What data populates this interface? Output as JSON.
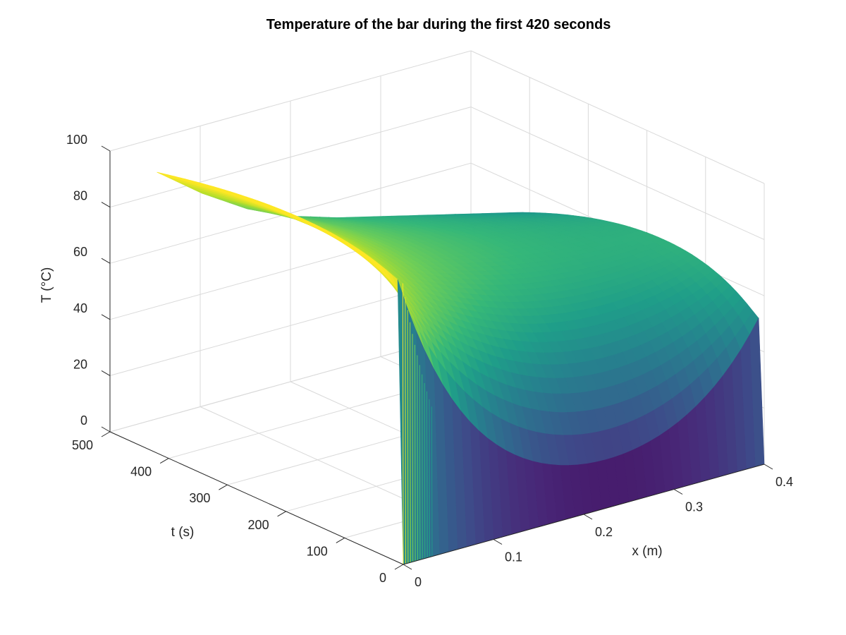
{
  "chart_data": {
    "type": "surface",
    "title": "Temperature of the bar during the first 420 seconds",
    "xlabel": "x (m)",
    "ylabel": "t (s)",
    "zlabel": "T (°C)",
    "x_ticks": [
      "0",
      "0.1",
      "0.2",
      "0.3",
      "0.4"
    ],
    "t_ticks": [
      "0",
      "100",
      "200",
      "300",
      "400",
      "500"
    ],
    "T_ticks": [
      "0",
      "20",
      "40",
      "60",
      "80",
      "100"
    ],
    "xlim": [
      0,
      0.4
    ],
    "tlim": [
      0,
      500
    ],
    "Tlim": [
      0,
      100
    ],
    "t_max_plotted": 420,
    "grid": true,
    "colormap": "viridis",
    "initial_temperature": 0,
    "boundary_temperature_x0": 100,
    "boundary_temperature_x04": 50,
    "profile_at_t420": {
      "x": [
        0,
        0.05,
        0.1,
        0.15,
        0.2,
        0.25,
        0.3,
        0.35,
        0.4
      ],
      "T": [
        100,
        88,
        78,
        71,
        66,
        62,
        58,
        54,
        50
      ]
    }
  }
}
